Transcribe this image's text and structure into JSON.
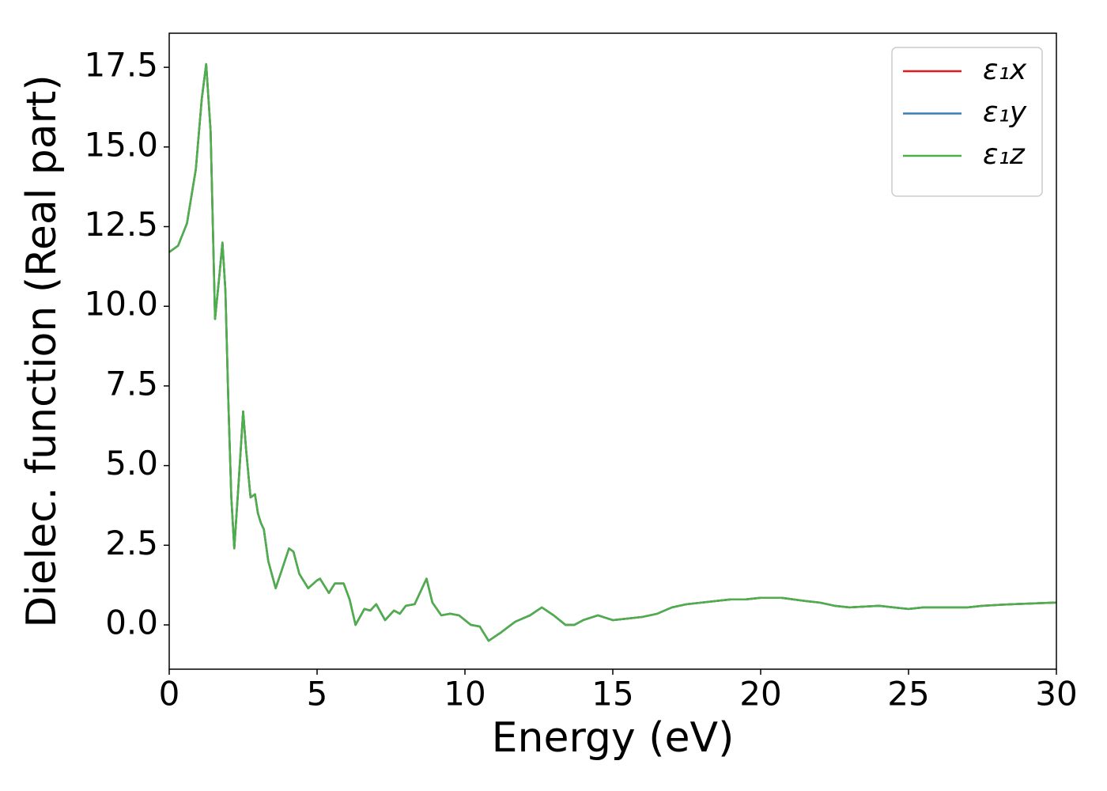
{
  "chart_data": {
    "type": "line",
    "xlabel": "Energy (eV)",
    "ylabel": "Dielec. function (Real part)",
    "x": [
      0,
      0.3,
      0.6,
      0.9,
      1.1,
      1.25,
      1.4,
      1.55,
      1.7,
      1.8,
      1.9,
      2.0,
      2.1,
      2.2,
      2.35,
      2.5,
      2.6,
      2.75,
      2.9,
      3.0,
      3.1,
      3.2,
      3.35,
      3.6,
      3.8,
      4.05,
      4.2,
      4.4,
      4.7,
      5.0,
      5.1,
      5.4,
      5.6,
      5.9,
      6.1,
      6.3,
      6.6,
      6.8,
      7.0,
      7.3,
      7.6,
      7.8,
      8.0,
      8.3,
      8.7,
      8.9,
      9.2,
      9.5,
      9.8,
      10.2,
      10.5,
      10.8,
      11.2,
      11.7,
      12.2,
      12.6,
      13.0,
      13.4,
      13.7,
      14.0,
      14.5,
      15.0,
      15.5,
      16.0,
      16.5,
      17.0,
      17.5,
      18.0,
      18.5,
      19.0,
      19.5,
      20.0,
      20.7,
      21.5,
      22.0,
      22.5,
      23.0,
      24.0,
      25.0,
      25.5,
      26.0,
      27.0,
      27.5,
      28.5,
      30.0
    ],
    "series": [
      {
        "name": "ε₁x",
        "color": "#e41a1c",
        "values": [
          11.7,
          11.9,
          12.6,
          14.3,
          16.5,
          17.6,
          15.5,
          9.6,
          11.0,
          12.0,
          10.5,
          7.0,
          4.0,
          2.4,
          4.5,
          6.7,
          5.5,
          4.0,
          4.1,
          3.5,
          3.2,
          3.0,
          2.0,
          1.15,
          1.7,
          2.4,
          2.3,
          1.6,
          1.15,
          1.4,
          1.45,
          1.0,
          1.3,
          1.3,
          0.8,
          0.0,
          0.5,
          0.45,
          0.65,
          0.15,
          0.45,
          0.35,
          0.6,
          0.65,
          1.45,
          0.7,
          0.3,
          0.35,
          0.3,
          0.0,
          -0.05,
          -0.5,
          -0.25,
          0.1,
          0.3,
          0.55,
          0.3,
          0.0,
          0.0,
          0.15,
          0.3,
          0.15,
          0.2,
          0.25,
          0.35,
          0.55,
          0.65,
          0.7,
          0.75,
          0.8,
          0.8,
          0.85,
          0.85,
          0.75,
          0.7,
          0.6,
          0.55,
          0.6,
          0.5,
          0.55,
          0.55,
          0.55,
          0.6,
          0.65,
          0.7
        ]
      },
      {
        "name": "ε₁y",
        "color": "#377eb8",
        "values": [
          11.7,
          11.9,
          12.6,
          14.3,
          16.5,
          17.6,
          15.5,
          9.6,
          11.0,
          12.0,
          10.5,
          7.0,
          4.0,
          2.4,
          4.5,
          6.7,
          5.5,
          4.0,
          4.1,
          3.5,
          3.2,
          3.0,
          2.0,
          1.15,
          1.7,
          2.4,
          2.3,
          1.6,
          1.15,
          1.4,
          1.45,
          1.0,
          1.3,
          1.3,
          0.8,
          0.0,
          0.5,
          0.45,
          0.65,
          0.15,
          0.45,
          0.35,
          0.6,
          0.65,
          1.45,
          0.7,
          0.3,
          0.35,
          0.3,
          0.0,
          -0.05,
          -0.5,
          -0.25,
          0.1,
          0.3,
          0.55,
          0.3,
          0.0,
          0.0,
          0.15,
          0.3,
          0.15,
          0.2,
          0.25,
          0.35,
          0.55,
          0.65,
          0.7,
          0.75,
          0.8,
          0.8,
          0.85,
          0.85,
          0.75,
          0.7,
          0.6,
          0.55,
          0.6,
          0.5,
          0.55,
          0.55,
          0.55,
          0.6,
          0.65,
          0.7
        ]
      },
      {
        "name": "ε₁z",
        "color": "#4daf4a",
        "values": [
          11.7,
          11.9,
          12.6,
          14.3,
          16.5,
          17.6,
          15.5,
          9.6,
          11.0,
          12.0,
          10.5,
          7.0,
          4.0,
          2.4,
          4.5,
          6.7,
          5.5,
          4.0,
          4.1,
          3.5,
          3.2,
          3.0,
          2.0,
          1.15,
          1.7,
          2.4,
          2.3,
          1.6,
          1.15,
          1.4,
          1.45,
          1.0,
          1.3,
          1.3,
          0.8,
          0.0,
          0.5,
          0.45,
          0.65,
          0.15,
          0.45,
          0.35,
          0.6,
          0.65,
          1.45,
          0.7,
          0.3,
          0.35,
          0.3,
          0.0,
          -0.05,
          -0.5,
          -0.25,
          0.1,
          0.3,
          0.55,
          0.3,
          0.0,
          0.0,
          0.15,
          0.3,
          0.15,
          0.2,
          0.25,
          0.35,
          0.55,
          0.65,
          0.7,
          0.75,
          0.8,
          0.8,
          0.85,
          0.85,
          0.75,
          0.7,
          0.6,
          0.55,
          0.6,
          0.5,
          0.55,
          0.55,
          0.55,
          0.6,
          0.65,
          0.7
        ]
      }
    ],
    "xlim": [
      0,
      30
    ],
    "xticks": [
      0,
      5,
      10,
      15,
      20,
      25,
      30
    ],
    "ylim": [
      -1.39,
      18.57
    ],
    "yticks": [
      {
        "value": 0,
        "label": "0.0"
      },
      2.5,
      {
        "value": 5,
        "label": "5.0"
      },
      7.5,
      {
        "value": 10,
        "label": "10.0"
      },
      12.5,
      {
        "value": 15,
        "label": "15.0"
      },
      17.5
    ],
    "grid": false,
    "legend": "upper right"
  }
}
